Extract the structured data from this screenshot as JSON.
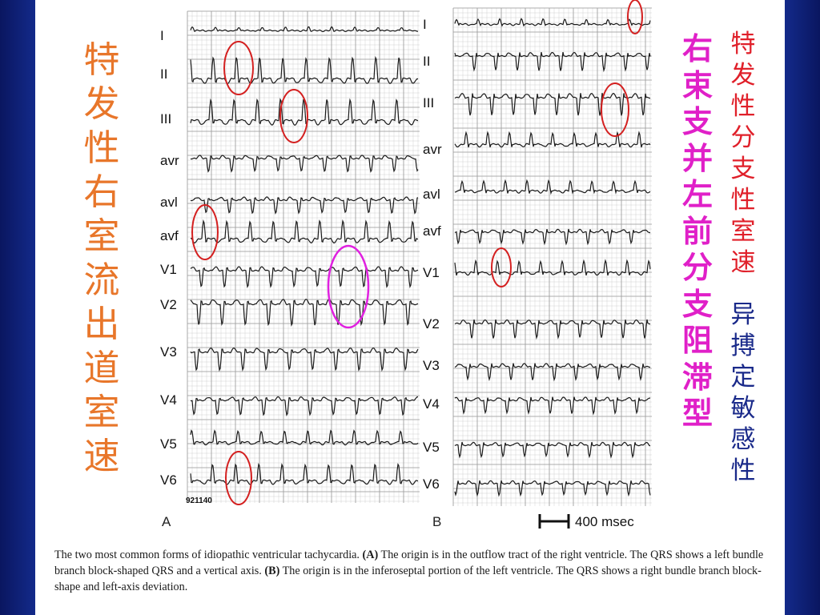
{
  "titles": {
    "left": "特发性右室流出道室速",
    "middle": "右束支并左前分支阻滞型",
    "right_top": "特发性分支性室速",
    "right_bottom": "异搏定敏感性"
  },
  "panel_a": {
    "leads": [
      "I",
      "II",
      "III",
      "avr",
      "avl",
      "avf",
      "V1",
      "V2",
      "V3",
      "V4",
      "V5",
      "V6"
    ],
    "record_id": "921140",
    "label": "A"
  },
  "panel_b": {
    "leads": [
      "I",
      "II",
      "III",
      "avr",
      "avl",
      "avf",
      "V1",
      "V2",
      "V3",
      "V4",
      "V5",
      "V6"
    ],
    "label": "B",
    "scale_bar": "400 msec"
  },
  "caption": {
    "intro": "The two most common forms of idiopathic ventricular tachycardia. ",
    "a_tag": "(A)",
    "a_text": " The origin is in the outflow tract of the right ventricle. The QRS shows a left bundle branch block-shaped QRS and a vertical axis. ",
    "b_tag": "(B)",
    "b_text": " The origin is in the inferoseptal portion of the left ventricle. The QRS shows a right bundle branch block-shape and left-axis deviation."
  },
  "colors": {
    "left_title": "#e8762a",
    "middle_title": "#e020c8",
    "right_top_title": "#e0202a",
    "right_bottom_title": "#1a2a8a",
    "circle_red": "#d42020",
    "circle_magenta": "#e020e0"
  }
}
